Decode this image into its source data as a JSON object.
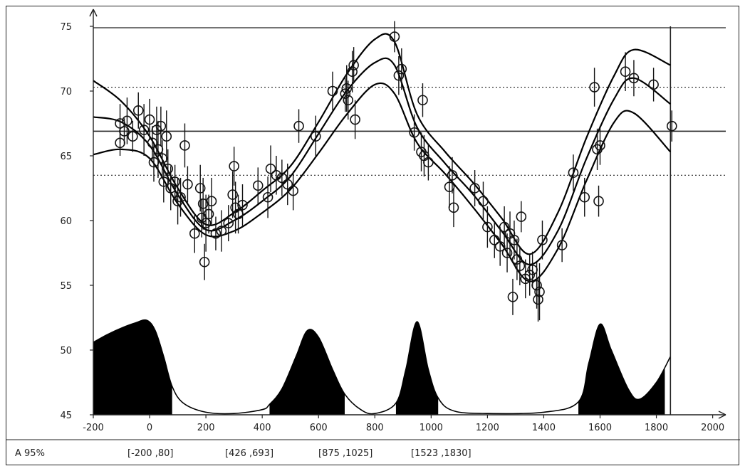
{
  "chart_data": {
    "type": "line",
    "title": "",
    "xlabel": "",
    "ylabel": "",
    "xlim": [
      -200,
      2000
    ],
    "ylim": [
      45,
      75
    ],
    "x_ticks": [
      "-200",
      "0",
      "200",
      "400",
      "600",
      "800",
      "1000",
      "1200",
      "1400",
      "1600",
      "1800",
      "2000"
    ],
    "y_ticks": [
      "45",
      "50",
      "55",
      "60",
      "65",
      "70",
      "75"
    ],
    "grid": false,
    "reference_lines": [
      {
        "y": 70.3,
        "style": "dotted"
      },
      {
        "y": 66.9,
        "style": "solid"
      },
      {
        "y": 63.5,
        "style": "dotted"
      }
    ],
    "vertical_line_x": 1850,
    "ci_label": "A 95%",
    "ci_intervals": [
      "[-200  ,80]",
      "[426  ,693]",
      "[875  ,1025]",
      "[1523  ,1830]"
    ],
    "curve_x": [
      -200,
      -100,
      0,
      100,
      200,
      300,
      400,
      500,
      600,
      700,
      800,
      870,
      950,
      1050,
      1150,
      1250,
      1350,
      1450,
      1550,
      1650,
      1720,
      1850
    ],
    "series": [
      {
        "values": [
          70.8,
          69.2,
          66.5,
          62.5,
          59.7,
          60.6,
          62.3,
          64.2,
          67.6,
          71.3,
          74.0,
          73.8,
          68.2,
          65.3,
          62.9,
          60.2,
          57.4,
          60.6,
          66.3,
          71.2,
          73.2,
          72.0
        ]
      },
      {
        "values": [
          68.0,
          67.6,
          65.8,
          62.0,
          59.3,
          60.0,
          61.5,
          63.4,
          66.7,
          70.0,
          72.2,
          72.0,
          67.2,
          64.4,
          62.0,
          59.2,
          56.6,
          59.2,
          64.7,
          69.4,
          71.0,
          69.0
        ]
      },
      {
        "values": [
          65.1,
          65.5,
          64.8,
          61.3,
          58.9,
          59.2,
          60.6,
          62.4,
          65.2,
          68.2,
          70.5,
          69.8,
          66.0,
          63.6,
          61.0,
          58.2,
          55.3,
          57.8,
          63.0,
          67.6,
          68.3,
          65.3
        ]
      }
    ],
    "points": [
      {
        "x": -105,
        "y": 67.5,
        "e": 1.5
      },
      {
        "x": -90,
        "y": 66.9,
        "e": 1.0
      },
      {
        "x": -80,
        "y": 67.7,
        "e": 1.8
      },
      {
        "x": -60,
        "y": 66.5,
        "e": 1.2
      },
      {
        "x": -40,
        "y": 68.5,
        "e": 1.4
      },
      {
        "x": -20,
        "y": 67.0,
        "e": 2.0
      },
      {
        "x": -105,
        "y": 66.0,
        "e": 1.0
      },
      {
        "x": 0,
        "y": 67.8,
        "e": 1.6
      },
      {
        "x": 10,
        "y": 66.0,
        "e": 1.3
      },
      {
        "x": 15,
        "y": 64.5,
        "e": 1.5
      },
      {
        "x": 25,
        "y": 67.0,
        "e": 1.8
      },
      {
        "x": 30,
        "y": 65.5,
        "e": 2.2
      },
      {
        "x": 40,
        "y": 67.3,
        "e": 1.5
      },
      {
        "x": 45,
        "y": 64.8,
        "e": 1.4
      },
      {
        "x": 50,
        "y": 63.0,
        "e": 1.6
      },
      {
        "x": 60,
        "y": 66.5,
        "e": 2.0
      },
      {
        "x": 65,
        "y": 64.0,
        "e": 1.5
      },
      {
        "x": 75,
        "y": 62.5,
        "e": 1.7
      },
      {
        "x": 90,
        "y": 63.0,
        "e": 1.3
      },
      {
        "x": 100,
        "y": 61.5,
        "e": 1.8
      },
      {
        "x": 110,
        "y": 61.8,
        "e": 1.5
      },
      {
        "x": 125,
        "y": 65.8,
        "e": 1.7
      },
      {
        "x": 135,
        "y": 62.8,
        "e": 1.4
      },
      {
        "x": 160,
        "y": 59.0,
        "e": 1.5
      },
      {
        "x": 180,
        "y": 62.5,
        "e": 1.8
      },
      {
        "x": 185,
        "y": 60.2,
        "e": 1.5
      },
      {
        "x": 190,
        "y": 61.3,
        "e": 2.0
      },
      {
        "x": 195,
        "y": 56.8,
        "e": 1.4
      },
      {
        "x": 200,
        "y": 59.8,
        "e": 2.2
      },
      {
        "x": 210,
        "y": 60.5,
        "e": 1.5
      },
      {
        "x": 220,
        "y": 61.5,
        "e": 1.8
      },
      {
        "x": 235,
        "y": 59.0,
        "e": 1.3
      },
      {
        "x": 255,
        "y": 59.2,
        "e": 1.6
      },
      {
        "x": 280,
        "y": 59.8,
        "e": 1.4
      },
      {
        "x": 295,
        "y": 62.0,
        "e": 1.8
      },
      {
        "x": 300,
        "y": 64.2,
        "e": 1.5
      },
      {
        "x": 305,
        "y": 61.0,
        "e": 2.0
      },
      {
        "x": 315,
        "y": 60.5,
        "e": 1.5
      },
      {
        "x": 330,
        "y": 61.2,
        "e": 1.6
      },
      {
        "x": 385,
        "y": 62.7,
        "e": 1.4
      },
      {
        "x": 420,
        "y": 61.8,
        "e": 1.6
      },
      {
        "x": 430,
        "y": 64.0,
        "e": 1.8
      },
      {
        "x": 450,
        "y": 63.5,
        "e": 1.5
      },
      {
        "x": 470,
        "y": 63.3,
        "e": 1.4
      },
      {
        "x": 490,
        "y": 62.8,
        "e": 1.6
      },
      {
        "x": 510,
        "y": 62.3,
        "e": 1.5
      },
      {
        "x": 530,
        "y": 67.3,
        "e": 1.3
      },
      {
        "x": 590,
        "y": 66.5,
        "e": 1.6
      },
      {
        "x": 650,
        "y": 70.0,
        "e": 1.5
      },
      {
        "x": 695,
        "y": 69.8,
        "e": 1.4
      },
      {
        "x": 700,
        "y": 70.2,
        "e": 1.8
      },
      {
        "x": 705,
        "y": 69.3,
        "e": 1.5
      },
      {
        "x": 720,
        "y": 71.5,
        "e": 1.6
      },
      {
        "x": 725,
        "y": 72.0,
        "e": 1.4
      },
      {
        "x": 730,
        "y": 67.8,
        "e": 1.5
      },
      {
        "x": 870,
        "y": 74.2,
        "e": 1.2
      },
      {
        "x": 885,
        "y": 71.2,
        "e": 1.5
      },
      {
        "x": 895,
        "y": 71.7,
        "e": 1.6
      },
      {
        "x": 940,
        "y": 66.8,
        "e": 1.4
      },
      {
        "x": 965,
        "y": 65.3,
        "e": 1.5
      },
      {
        "x": 970,
        "y": 69.3,
        "e": 1.3
      },
      {
        "x": 975,
        "y": 65.0,
        "e": 1.6
      },
      {
        "x": 990,
        "y": 64.5,
        "e": 1.4
      },
      {
        "x": 1065,
        "y": 62.6,
        "e": 1.6
      },
      {
        "x": 1075,
        "y": 63.5,
        "e": 1.4
      },
      {
        "x": 1080,
        "y": 61.0,
        "e": 1.5
      },
      {
        "x": 1155,
        "y": 62.5,
        "e": 1.4
      },
      {
        "x": 1185,
        "y": 61.5,
        "e": 1.5
      },
      {
        "x": 1200,
        "y": 59.5,
        "e": 1.6
      },
      {
        "x": 1225,
        "y": 58.5,
        "e": 1.4
      },
      {
        "x": 1245,
        "y": 58.0,
        "e": 1.5
      },
      {
        "x": 1260,
        "y": 59.5,
        "e": 1.6
      },
      {
        "x": 1270,
        "y": 57.5,
        "e": 1.5
      },
      {
        "x": 1280,
        "y": 59.0,
        "e": 1.7
      },
      {
        "x": 1290,
        "y": 54.1,
        "e": 1.4
      },
      {
        "x": 1295,
        "y": 58.5,
        "e": 1.5
      },
      {
        "x": 1305,
        "y": 57.0,
        "e": 1.6
      },
      {
        "x": 1315,
        "y": 56.5,
        "e": 1.5
      },
      {
        "x": 1320,
        "y": 60.3,
        "e": 1.2
      },
      {
        "x": 1335,
        "y": 55.5,
        "e": 1.5
      },
      {
        "x": 1350,
        "y": 55.8,
        "e": 1.6
      },
      {
        "x": 1360,
        "y": 56.2,
        "e": 1.4
      },
      {
        "x": 1375,
        "y": 55.0,
        "e": 1.8
      },
      {
        "x": 1380,
        "y": 53.9,
        "e": 1.7
      },
      {
        "x": 1385,
        "y": 54.5,
        "e": 2.2
      },
      {
        "x": 1395,
        "y": 58.5,
        "e": 1.5
      },
      {
        "x": 1465,
        "y": 58.1,
        "e": 1.3
      },
      {
        "x": 1505,
        "y": 63.7,
        "e": 1.4
      },
      {
        "x": 1545,
        "y": 61.8,
        "e": 1.5
      },
      {
        "x": 1580,
        "y": 70.3,
        "e": 1.5
      },
      {
        "x": 1590,
        "y": 65.5,
        "e": 1.6
      },
      {
        "x": 1595,
        "y": 61.5,
        "e": 1.2
      },
      {
        "x": 1600,
        "y": 65.8,
        "e": 1.5
      },
      {
        "x": 1690,
        "y": 71.5,
        "e": 1.5
      },
      {
        "x": 1720,
        "y": 71.0,
        "e": 1.4
      },
      {
        "x": 1790,
        "y": 70.5,
        "e": 1.3
      },
      {
        "x": 1855,
        "y": 67.3,
        "e": 1.2
      }
    ],
    "probability_density": {
      "baseline_y": 45,
      "x": [
        -200,
        -150,
        -100,
        -50,
        -10,
        20,
        50,
        80,
        120,
        200,
        300,
        400,
        426,
        470,
        520,
        560,
        600,
        650,
        693,
        750,
        800,
        875,
        910,
        950,
        990,
        1025,
        1080,
        1200,
        1400,
        1523,
        1560,
        1600,
        1640,
        1700,
        1740,
        1800,
        1850
      ],
      "y": [
        50.6,
        51.2,
        51.7,
        52.1,
        52.3,
        51.5,
        49.5,
        47.2,
        45.9,
        45.2,
        45.1,
        45.4,
        45.8,
        47.0,
        49.5,
        51.5,
        51.0,
        48.5,
        46.6,
        45.4,
        45.1,
        45.9,
        48.5,
        52.2,
        48.5,
        46.3,
        45.3,
        45.1,
        45.2,
        46.0,
        49.0,
        52.0,
        50.0,
        47.0,
        46.2,
        47.5,
        49.5
      ]
    }
  }
}
